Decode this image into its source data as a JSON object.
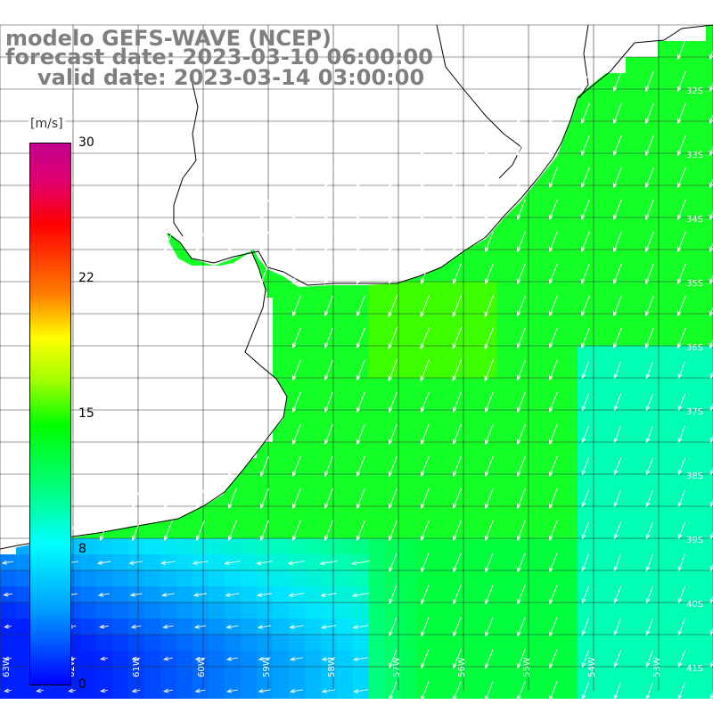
{
  "header": {
    "line1": "modelo GEFS-WAVE (NCEP)",
    "line2": "forecast date: 2023-03-10 06:00:00",
    "line3": "valid date: 2023-03-14 03:00:00"
  },
  "colorbar": {
    "unit": "[m/s]",
    "ticks": [
      "30",
      "22",
      "15",
      "8",
      "0"
    ],
    "range": [
      0,
      30
    ],
    "colors": [
      "#0000ff",
      "#00a0ff",
      "#00ffff",
      "#00ff80",
      "#00ff00",
      "#a0ff00",
      "#ffff00",
      "#ff8000",
      "#ff0000",
      "#c0008f"
    ]
  },
  "map": {
    "lat_labels": [
      "32S",
      "33S",
      "34S",
      "35S",
      "36S",
      "37S",
      "38S",
      "39S",
      "40S",
      "41S"
    ],
    "lon_labels": [
      "63W",
      "62W",
      "61W",
      "60W",
      "59W",
      "58W",
      "57W",
      "56W",
      "55W",
      "54W",
      "53W"
    ],
    "land_color": "#ffffff",
    "grid_color": "#333333",
    "coast_color": "#000000",
    "arrow_color": "#ffffff"
  }
}
